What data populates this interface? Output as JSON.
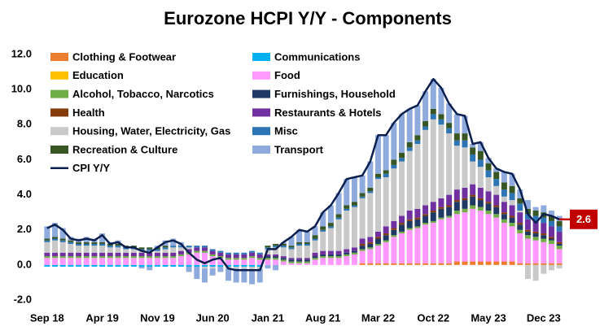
{
  "chart_data": {
    "type": "bar",
    "title": "Eurozone HCPI Y/Y - Components",
    "categories": [
      "Sep 18",
      null,
      null,
      null,
      null,
      null,
      null,
      "Apr 19",
      null,
      null,
      null,
      null,
      null,
      null,
      "Nov 19",
      null,
      null,
      null,
      null,
      null,
      null,
      "Jun 20",
      null,
      null,
      null,
      null,
      null,
      null,
      "Jan 21",
      null,
      null,
      null,
      null,
      null,
      null,
      "Aug 21",
      null,
      null,
      null,
      null,
      null,
      null,
      "Mar 22",
      null,
      null,
      null,
      null,
      null,
      null,
      "Oct 22",
      null,
      null,
      null,
      null,
      null,
      null,
      "May 23",
      null,
      null,
      null,
      null,
      null,
      null,
      "Dec 23",
      null,
      null
    ],
    "ylim": [
      -2,
      12
    ],
    "yticks": [
      {
        "value": -2,
        "label": "-2.0"
      },
      {
        "value": 0,
        "label": "0.0"
      },
      {
        "value": 2,
        "label": "2.0"
      },
      {
        "value": 4,
        "label": "4.0"
      },
      {
        "value": 6,
        "label": "6.0"
      },
      {
        "value": 8,
        "label": "8.0"
      },
      {
        "value": 10,
        "label": "10.0"
      },
      {
        "value": 12,
        "label": "12.0"
      }
    ],
    "series": [
      {
        "name": "Clothing & Footwear",
        "color": "#ed7d31",
        "values": [
          0,
          0,
          0,
          0,
          0,
          0,
          0,
          0,
          0,
          0,
          0,
          0,
          0,
          0,
          0,
          0,
          0,
          0,
          0,
          0,
          0,
          0,
          0,
          0,
          0,
          0,
          0,
          0,
          0,
          0,
          0,
          0,
          0,
          0,
          0,
          0,
          0,
          0,
          0,
          0,
          0.1,
          0.1,
          0.1,
          0.1,
          0.1,
          0.1,
          0.1,
          0.1,
          0.1,
          0.1,
          0.1,
          0.1,
          0.2,
          0.2,
          0.2,
          0.2,
          0.2,
          0.2,
          0.2,
          0.2,
          0.1,
          0.1,
          0.1,
          0.1,
          0.1,
          0.1
        ]
      },
      {
        "name": "Communications",
        "color": "#00b0f0",
        "values": [
          -0.1,
          -0.1,
          -0.1,
          -0.1,
          -0.1,
          -0.1,
          -0.1,
          -0.1,
          -0.1,
          -0.1,
          -0.1,
          -0.1,
          -0.1,
          -0.1,
          -0.1,
          -0.1,
          -0.1,
          -0.1,
          -0.1,
          -0.1,
          -0.1,
          -0.1,
          -0.1,
          -0.1,
          -0.1,
          -0.1,
          -0.1,
          -0.1,
          0,
          0,
          0,
          0,
          0,
          0,
          0,
          0,
          0,
          0,
          0,
          0,
          0,
          0,
          0,
          0,
          0,
          0,
          0,
          0,
          0,
          0,
          0,
          0,
          0,
          0,
          0,
          0,
          0,
          0,
          0,
          0,
          0,
          0,
          0,
          0,
          0,
          0
        ]
      },
      {
        "name": "Education",
        "color": "#ffc000",
        "values": [
          0,
          0,
          0,
          0,
          0,
          0,
          0,
          0,
          0,
          0,
          0,
          0,
          0,
          0,
          0,
          0,
          0,
          0,
          0,
          0,
          0,
          0,
          0,
          0,
          0,
          0,
          0,
          0,
          0,
          0,
          0,
          0,
          0,
          0,
          0,
          0,
          0,
          0,
          0,
          0,
          0,
          0,
          0,
          0,
          0,
          0,
          0,
          0,
          0,
          0,
          0,
          0,
          0,
          0,
          0,
          0,
          0,
          0,
          0,
          0,
          0,
          0,
          0,
          0,
          0,
          0
        ]
      },
      {
        "name": "Food",
        "color": "#ff99ff",
        "values": [
          0.4,
          0.4,
          0.4,
          0.4,
          0.4,
          0.4,
          0.4,
          0.4,
          0.4,
          0.4,
          0.4,
          0.4,
          0.4,
          0.4,
          0.4,
          0.4,
          0.4,
          0.5,
          0.6,
          0.7,
          0.7,
          0.5,
          0.4,
          0.3,
          0.3,
          0.3,
          0.4,
          0.3,
          0.3,
          0.3,
          0.2,
          0.1,
          0.1,
          0.1,
          0.3,
          0.4,
          0.4,
          0.4,
          0.5,
          0.6,
          0.7,
          0.8,
          1.0,
          1.2,
          1.5,
          1.7,
          1.9,
          2.0,
          2.2,
          2.3,
          2.5,
          2.6,
          2.7,
          2.8,
          3.0,
          2.9,
          2.7,
          2.5,
          2.2,
          2.0,
          1.7,
          1.4,
          1.3,
          1.2,
          1.1,
          0.8
        ]
      },
      {
        "name": "Alcohol, Tobacco, Narcotics",
        "color": "#70ad47",
        "values": [
          0.1,
          0.1,
          0.1,
          0.1,
          0.1,
          0.1,
          0.1,
          0.1,
          0.1,
          0.1,
          0.1,
          0.1,
          0.1,
          0.1,
          0.1,
          0.1,
          0.1,
          0.1,
          0.1,
          0.1,
          0.1,
          0.1,
          0.1,
          0.1,
          0.1,
          0.1,
          0.1,
          0.1,
          0.1,
          0.1,
          0.1,
          0.1,
          0.1,
          0.1,
          0.1,
          0.1,
          0.1,
          0.1,
          0.1,
          0.1,
          0.1,
          0.1,
          0.1,
          0.1,
          0.1,
          0.1,
          0.1,
          0.1,
          0.1,
          0.1,
          0.1,
          0.1,
          0.2,
          0.2,
          0.2,
          0.2,
          0.2,
          0.2,
          0.2,
          0.2,
          0.2,
          0.2,
          0.2,
          0.2,
          0.2,
          0.2
        ]
      },
      {
        "name": "Furnishings, Household",
        "color": "#1f3864",
        "values": [
          0,
          0,
          0,
          0,
          0,
          0,
          0,
          0,
          0,
          0,
          0,
          0,
          0,
          0,
          0,
          0,
          0,
          0,
          0,
          0,
          0,
          0,
          0,
          0,
          0,
          0,
          0,
          0,
          0.1,
          0.1,
          0.1,
          0.1,
          0.1,
          0.1,
          0.1,
          0.1,
          0.1,
          0.1,
          0.1,
          0.1,
          0.2,
          0.2,
          0.3,
          0.3,
          0.3,
          0.4,
          0.4,
          0.4,
          0.4,
          0.5,
          0.5,
          0.5,
          0.5,
          0.5,
          0.5,
          0.4,
          0.4,
          0.4,
          0.3,
          0.3,
          0.3,
          0.2,
          0.2,
          0.2,
          0.1,
          0.1
        ]
      },
      {
        "name": "Health",
        "color": "#843c0c",
        "values": [
          0,
          0,
          0,
          0,
          0,
          0,
          0,
          0,
          0,
          0,
          0,
          0,
          0,
          0,
          0,
          0,
          0,
          0,
          0,
          0,
          0,
          0,
          0,
          0,
          0,
          0,
          0,
          0,
          0,
          0,
          0,
          0,
          0,
          0,
          0,
          0,
          0,
          0,
          0,
          0,
          0.1,
          0.1,
          0.1,
          0.1,
          0.1,
          0.1,
          0.1,
          0.1,
          0.1,
          0.1,
          0.1,
          0.1,
          0.1,
          0.1,
          0.1,
          0.1,
          0.1,
          0.1,
          0.1,
          0.1,
          0.1,
          0.1,
          0.1,
          0.1,
          0.1,
          0.1
        ]
      },
      {
        "name": "Restaurants & Hotels",
        "color": "#7030a0",
        "values": [
          0.2,
          0.2,
          0.2,
          0.2,
          0.2,
          0.2,
          0.2,
          0.2,
          0.2,
          0.2,
          0.2,
          0.2,
          0.2,
          0.2,
          0.2,
          0.2,
          0.2,
          0.2,
          0.2,
          0.2,
          0.2,
          0.2,
          0.2,
          0.2,
          0.2,
          0.2,
          0.2,
          0.2,
          0.1,
          0.1,
          0.1,
          0.1,
          0.1,
          0.1,
          0.2,
          0.2,
          0.2,
          0.2,
          0.2,
          0.2,
          0.3,
          0.3,
          0.3,
          0.4,
          0.4,
          0.4,
          0.5,
          0.5,
          0.5,
          0.5,
          0.5,
          0.6,
          0.6,
          0.6,
          0.6,
          0.6,
          0.6,
          0.6,
          0.6,
          0.6,
          0.6,
          0.6,
          0.6,
          0.6,
          0.6,
          0.6
        ]
      },
      {
        "name": "Housing, Water, Electricity, Gas",
        "color": "#c9c9c9",
        "values": [
          0.6,
          0.7,
          0.6,
          0.5,
          0.4,
          0.4,
          0.4,
          0.4,
          0.3,
          0.3,
          0.2,
          0.2,
          0.1,
          0.1,
          0.1,
          0.2,
          0.3,
          0.2,
          0.1,
          0.0,
          -0.1,
          -0.1,
          0.0,
          -0.1,
          -0.1,
          -0.1,
          -0.2,
          -0.1,
          0.3,
          0.4,
          0.5,
          0.5,
          0.7,
          0.7,
          0.7,
          1.1,
          1.3,
          1.8,
          2.2,
          2.3,
          2.3,
          2.5,
          3.0,
          2.8,
          3.0,
          3.1,
          3.4,
          3.7,
          4.3,
          4.7,
          4.2,
          3.5,
          2.5,
          2.3,
          1.3,
          1.2,
          0.8,
          0.5,
          0.3,
          0.3,
          0.1,
          -0.8,
          -0.9,
          -0.5,
          -0.3,
          -0.2
        ]
      },
      {
        "name": "Misc",
        "color": "#2e75b6",
        "values": [
          0.1,
          0.1,
          0.1,
          0.1,
          0.1,
          0.1,
          0.1,
          0.1,
          0.1,
          0.1,
          0.1,
          0.1,
          0.1,
          0.1,
          0.1,
          0.1,
          0.1,
          0.1,
          0.1,
          0.1,
          0.1,
          0.1,
          0.1,
          0.1,
          0.1,
          0.1,
          0.1,
          0.1,
          0.1,
          0.1,
          0.1,
          0.1,
          0.1,
          0.1,
          0.1,
          0.1,
          0.1,
          0.1,
          0.1,
          0.1,
          0.1,
          0.1,
          0.1,
          0.2,
          0.2,
          0.2,
          0.2,
          0.2,
          0.2,
          0.3,
          0.3,
          0.3,
          0.3,
          0.4,
          0.4,
          0.4,
          0.4,
          0.4,
          0.4,
          0.4,
          0.4,
          0.3,
          0.3,
          0.3,
          0.3,
          0.3
        ]
      },
      {
        "name": "Recreation & Culture",
        "color": "#375623",
        "values": [
          0.1,
          0.1,
          0.1,
          0.1,
          0.1,
          0.1,
          0.1,
          0.1,
          0.1,
          0.1,
          0.1,
          0.1,
          0.1,
          0.1,
          0.1,
          0.1,
          0,
          0,
          0,
          0,
          0,
          0,
          0,
          0,
          0,
          0,
          0,
          0,
          0.1,
          0.1,
          0.1,
          0.1,
          0.1,
          0.1,
          0.2,
          0.2,
          0.2,
          0.2,
          0.2,
          0.2,
          0.2,
          0.2,
          0.2,
          0.2,
          0.3,
          0.3,
          0.3,
          0.3,
          0.3,
          0.3,
          0.3,
          0.3,
          0.4,
          0.4,
          0.4,
          0.5,
          0.4,
          0.4,
          0.4,
          0.4,
          0.3,
          0.3,
          0.3,
          0.3,
          0.3,
          0.3
        ]
      },
      {
        "name": "Transport",
        "color": "#8faadc",
        "values": [
          0.7,
          0.8,
          0.6,
          0.2,
          0.2,
          0.3,
          0.2,
          0.5,
          0.1,
          0.2,
          0.0,
          0.0,
          -0.1,
          -0.2,
          0.1,
          0.3,
          0.4,
          0.2,
          -0.3,
          -0.7,
          -0.8,
          -0.4,
          -0.3,
          -0.7,
          -0.8,
          -0.8,
          -0.8,
          -0.8,
          -0.2,
          -0.3,
          0.1,
          0.5,
          0.7,
          0.6,
          0.5,
          0.8,
          1.0,
          1.2,
          1.5,
          1.4,
          1.0,
          1.5,
          2.2,
          2.0,
          2.1,
          2.2,
          1.9,
          1.7,
          1.7,
          1.7,
          1.5,
          1.1,
          1.1,
          1.0,
          0.2,
          0.5,
          0.3,
          0.2,
          0.6,
          0.7,
          0.5,
          0.5,
          0.2,
          0.4,
          0.3,
          0.3
        ]
      },
      {
        "name": "CPI Y/Y",
        "type": "line",
        "color": "#0b1f4f",
        "values": [
          2.1,
          2.3,
          2.0,
          1.5,
          1.4,
          1.5,
          1.4,
          1.7,
          1.2,
          1.3,
          1.0,
          1.0,
          0.8,
          0.7,
          1.0,
          1.3,
          1.4,
          1.2,
          0.7,
          0.3,
          0.1,
          0.3,
          0.4,
          -0.2,
          -0.3,
          -0.3,
          -0.3,
          -0.3,
          0.9,
          0.9,
          1.3,
          1.6,
          2.0,
          1.9,
          2.2,
          3.0,
          3.4,
          4.1,
          4.9,
          5.0,
          5.1,
          5.9,
          7.4,
          7.4,
          8.1,
          8.6,
          8.9,
          9.1,
          9.9,
          10.6,
          10.1,
          9.2,
          8.6,
          8.5,
          6.9,
          7.0,
          6.1,
          5.5,
          5.3,
          5.2,
          4.3,
          2.9,
          2.4,
          2.9,
          2.8,
          2.6
        ]
      }
    ]
  }
}
